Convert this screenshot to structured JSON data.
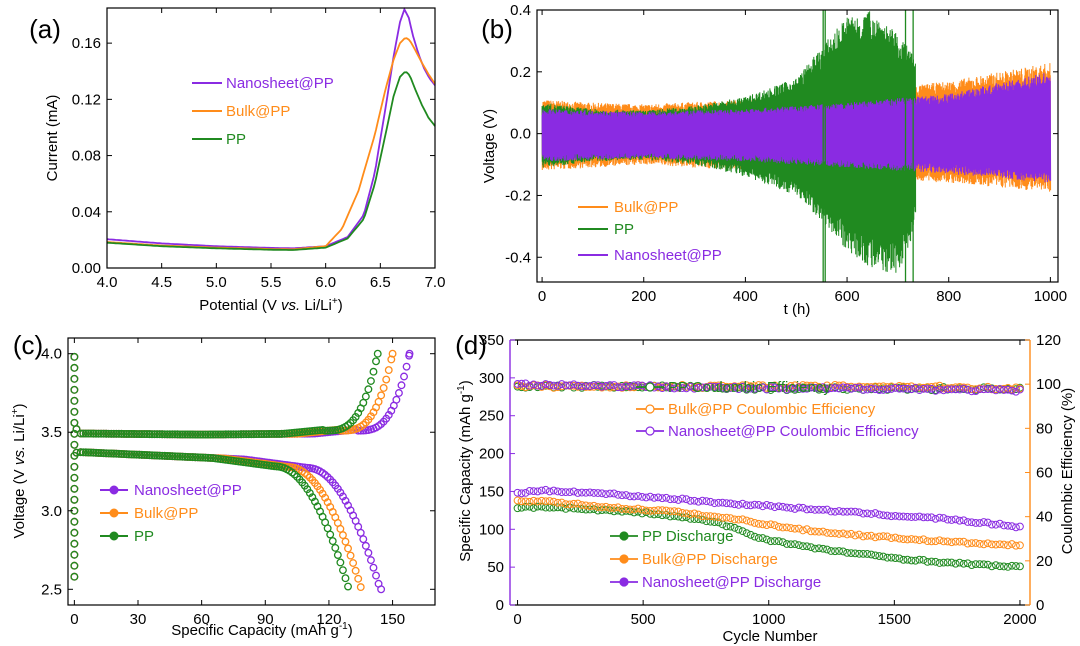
{
  "colors": {
    "nanosheet": "#8a2be2",
    "bulk": "#ff8c1a",
    "pp": "#208a20",
    "axis": "#000000"
  },
  "chart_data": [
    {
      "panel": "(a)",
      "type": "line",
      "xlabel_pre": "Potential (V ",
      "xlabel_ital": "vs.",
      "xlabel_post": " Li/Li",
      "xlabel_sup": "+",
      "xlabel_end": ")",
      "ylabel": "Current (mA)",
      "xlim": [
        4.0,
        7.0
      ],
      "ylim": [
        0.0,
        0.185
      ],
      "xticks": [
        "4.0",
        "4.5",
        "5.0",
        "5.5",
        "6.0",
        "6.5",
        "7.0"
      ],
      "yticks": [
        "0.00",
        "0.04",
        "0.08",
        "0.12",
        "0.16"
      ],
      "legend_position": "upper-middle",
      "series": [
        {
          "name": "Nanosheet@PP",
          "color": "#8a2be2",
          "x": [
            4.0,
            4.5,
            5.0,
            5.5,
            5.7,
            6.0,
            6.2,
            6.35,
            6.45,
            6.55,
            6.62,
            6.68,
            6.72,
            6.76,
            6.8,
            6.85,
            6.9,
            6.95,
            7.0
          ],
          "y": [
            0.0205,
            0.0175,
            0.0155,
            0.0143,
            0.014,
            0.0155,
            0.022,
            0.038,
            0.068,
            0.115,
            0.15,
            0.175,
            0.184,
            0.178,
            0.165,
            0.152,
            0.142,
            0.135,
            0.13
          ]
        },
        {
          "name": "Bulk@PP",
          "color": "#ff8c1a",
          "x": [
            4.0,
            4.5,
            5.0,
            5.5,
            5.7,
            6.0,
            6.15,
            6.3,
            6.45,
            6.55,
            6.62,
            6.68,
            6.73,
            6.77,
            6.82,
            6.88,
            6.94,
            7.0
          ],
          "y": [
            0.0185,
            0.016,
            0.0145,
            0.0135,
            0.0133,
            0.0155,
            0.028,
            0.055,
            0.095,
            0.128,
            0.148,
            0.16,
            0.164,
            0.162,
            0.155,
            0.146,
            0.138,
            0.131
          ]
        },
        {
          "name": "PP",
          "color": "#208a20",
          "x": [
            4.0,
            4.5,
            5.0,
            5.5,
            5.7,
            6.0,
            6.2,
            6.35,
            6.45,
            6.55,
            6.62,
            6.68,
            6.73,
            6.77,
            6.82,
            6.88,
            6.94,
            7.0
          ],
          "y": [
            0.018,
            0.0155,
            0.014,
            0.013,
            0.0128,
            0.0145,
            0.021,
            0.035,
            0.06,
            0.096,
            0.122,
            0.136,
            0.14,
            0.137,
            0.127,
            0.116,
            0.107,
            0.101
          ]
        }
      ]
    },
    {
      "panel": "(b)",
      "type": "line",
      "xlabel": "t (h)",
      "ylabel": "Voltage (V)",
      "xlim": [
        -10,
        1015
      ],
      "ylim": [
        -0.48,
        0.4
      ],
      "xticks": [
        "0",
        "200",
        "400",
        "600",
        "800",
        "1000"
      ],
      "yticks": [
        "-0.4",
        "-0.2",
        "0.0",
        "0.2",
        "0.4"
      ],
      "legend_position": "lower-left",
      "series": [
        {
          "name": "Bulk@PP",
          "color": "#ff8c1a",
          "note_envelope_t": [
            0,
            100,
            200,
            400,
            600,
            800,
            1000
          ],
          "upper": [
            0.11,
            0.1,
            0.095,
            0.11,
            0.13,
            0.17,
            0.23
          ],
          "lower": [
            -0.12,
            -0.11,
            -0.1,
            -0.12,
            -0.14,
            -0.16,
            -0.19
          ]
        },
        {
          "name": "PP",
          "color": "#208a20",
          "note_envelope_t": [
            0,
            100,
            200,
            300,
            400,
            500,
            560,
            600,
            650,
            700,
            735
          ],
          "upper": [
            0.1,
            0.08,
            0.075,
            0.09,
            0.12,
            0.18,
            0.3,
            0.38,
            0.4,
            0.32,
            0.25
          ],
          "lower": [
            -0.11,
            -0.09,
            -0.085,
            -0.1,
            -0.14,
            -0.2,
            -0.3,
            -0.38,
            -0.44,
            -0.46,
            -0.3
          ]
        },
        {
          "name": "Nanosheet@PP",
          "color": "#8a2be2",
          "note_envelope_t": [
            0,
            200,
            400,
            600,
            800,
            1000
          ],
          "upper": [
            0.08,
            0.07,
            0.08,
            0.1,
            0.13,
            0.2
          ],
          "lower": [
            -0.09,
            -0.08,
            -0.09,
            -0.11,
            -0.13,
            -0.16
          ]
        }
      ]
    },
    {
      "panel": "(c)",
      "type": "scatter",
      "xlabel_pre": "Specific Capacity (mAh g",
      "xlabel_sup": "-1",
      "xlabel_end": ")",
      "ylabel_pre": "Voltage (V ",
      "ylabel_ital": "vs.",
      "ylabel_post": " Li/Li",
      "ylabel_sup": "+",
      "ylabel_end": ")",
      "xlim": [
        -3,
        170
      ],
      "ylim": [
        2.4,
        4.1
      ],
      "xticks": [
        "0",
        "30",
        "60",
        "90",
        "120",
        "150"
      ],
      "yticks": [
        "2.5",
        "3.0",
        "3.5",
        "4.0"
      ],
      "legend_position": "middle-left",
      "series": [
        {
          "name": "Nanosheet@PP",
          "color": "#8a2be2",
          "charge_end": 158,
          "discharge_end": 145
        },
        {
          "name": "Bulk@PP",
          "color": "#ff8c1a",
          "charge_end": 150,
          "discharge_end": 136
        },
        {
          "name": "PP",
          "color": "#208a20",
          "charge_end": 143,
          "discharge_end": 130
        }
      ]
    },
    {
      "panel": "(d)",
      "type": "scatter",
      "xlabel": "Cycle Number",
      "ylabel_left_pre": "Specific Capacity (mAh g",
      "ylabel_left_sup": "-1",
      "ylabel_left_end": ")",
      "ylabel_right": "Coulombic Efficiency (%)",
      "xlim": [
        -30,
        2040
      ],
      "ylim_left": [
        0,
        350
      ],
      "ylim_right": [
        0,
        120
      ],
      "xticks": [
        "0",
        "500",
        "1000",
        "1500",
        "2000"
      ],
      "yticks_left": [
        "0",
        "50",
        "100",
        "150",
        "200",
        "250",
        "300",
        "350"
      ],
      "yticks_right": [
        "0",
        "20",
        "40",
        "60",
        "80",
        "100",
        "120"
      ],
      "series": [
        {
          "name": "PP Coulombic Efficiency",
          "color": "#208a20",
          "axis": "right",
          "kind": "ce",
          "x": [
            0,
            500,
            1000,
            1500,
            2000
          ],
          "y": [
            99,
            99,
            98,
            98,
            98
          ]
        },
        {
          "name": "Bulk@PP Coulombic Efficiency",
          "color": "#ff8c1a",
          "axis": "right",
          "kind": "ce",
          "x": [
            0,
            500,
            1000,
            1500,
            2000
          ],
          "y": [
            99,
            99,
            99,
            99,
            98
          ]
        },
        {
          "name": "Nanosheet@PP Coulombic Efficiency",
          "color": "#8a2be2",
          "axis": "right",
          "kind": "ce",
          "x": [
            0,
            500,
            1000,
            1500,
            2000
          ],
          "y": [
            100,
            99,
            98,
            98,
            97
          ]
        },
        {
          "name": "PP Discharge",
          "color": "#208a20",
          "axis": "left",
          "kind": "cap",
          "x": [
            0,
            100,
            200,
            300,
            400,
            500,
            600,
            700,
            800,
            850,
            900,
            950,
            1000,
            1100,
            1200,
            1300,
            1400,
            1500,
            1600,
            1700,
            1800,
            1900,
            2000
          ],
          "y": [
            128,
            130,
            128,
            126,
            124,
            122,
            118,
            114,
            108,
            103,
            97,
            90,
            86,
            80,
            74,
            70,
            66,
            62,
            59,
            56,
            54,
            52,
            50
          ]
        },
        {
          "name": "Bulk@PP Discharge",
          "color": "#ff8c1a",
          "axis": "left",
          "kind": "cap",
          "x": [
            0,
            100,
            200,
            300,
            400,
            500,
            600,
            700,
            800,
            900,
            1000,
            1100,
            1200,
            1300,
            1400,
            1500,
            1600,
            1700,
            1800,
            1900,
            2000
          ],
          "y": [
            138,
            137,
            134,
            131,
            128,
            126,
            124,
            120,
            116,
            112,
            106,
            101,
            97,
            94,
            91,
            89,
            86,
            84,
            82,
            80,
            79
          ]
        },
        {
          "name": "Nanosheet@PP Discharge",
          "color": "#8a2be2",
          "axis": "left",
          "kind": "cap",
          "x": [
            0,
            100,
            200,
            300,
            400,
            500,
            600,
            700,
            800,
            900,
            1000,
            1100,
            1200,
            1300,
            1400,
            1500,
            1600,
            1700,
            1800,
            1900,
            2000
          ],
          "y": [
            148,
            151,
            150,
            148,
            146,
            143,
            141,
            138,
            135,
            133,
            131,
            128,
            126,
            123,
            121,
            118,
            116,
            114,
            110,
            107,
            103
          ]
        }
      ]
    }
  ]
}
